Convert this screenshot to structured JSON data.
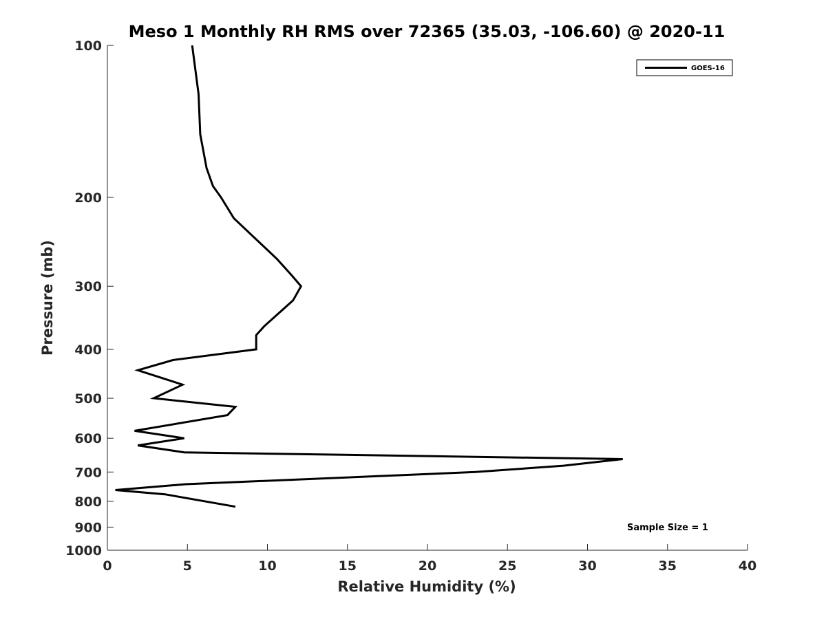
{
  "chart_data": {
    "type": "line",
    "title": "Meso 1 Monthly RH RMS over 72365 (35.03, -106.60) @ 2020-11",
    "xlabel": "Relative Humidity (%)",
    "ylabel": "Pressure (mb)",
    "xlim": [
      0,
      40
    ],
    "ylim": [
      100,
      1000
    ],
    "y_scale": "log",
    "y_reversed": true,
    "grid": false,
    "legend_position": "top-right",
    "x_ticks": [
      "0",
      "5",
      "10",
      "15",
      "20",
      "25",
      "30",
      "35",
      "40"
    ],
    "y_ticks": [
      "100",
      "200",
      "300",
      "400",
      "500",
      "600",
      "700",
      "800",
      "900",
      "1000"
    ],
    "annotation": "Sample Size = 1",
    "series": [
      {
        "name": "GOES-16",
        "color": "#000000",
        "points": [
          {
            "rh": 5.3,
            "p": 100
          },
          {
            "rh": 5.7,
            "p": 125
          },
          {
            "rh": 5.8,
            "p": 150
          },
          {
            "rh": 6.2,
            "p": 175
          },
          {
            "rh": 6.6,
            "p": 190
          },
          {
            "rh": 7.1,
            "p": 200
          },
          {
            "rh": 7.9,
            "p": 220
          },
          {
            "rh": 10.6,
            "p": 265
          },
          {
            "rh": 11.5,
            "p": 285
          },
          {
            "rh": 12.1,
            "p": 300
          },
          {
            "rh": 11.6,
            "p": 320
          },
          {
            "rh": 9.8,
            "p": 360
          },
          {
            "rh": 9.3,
            "p": 375
          },
          {
            "rh": 9.3,
            "p": 400
          },
          {
            "rh": 4.1,
            "p": 420
          },
          {
            "rh": 1.9,
            "p": 440
          },
          {
            "rh": 4.7,
            "p": 470
          },
          {
            "rh": 2.9,
            "p": 500
          },
          {
            "rh": 8.0,
            "p": 520
          },
          {
            "rh": 7.5,
            "p": 540
          },
          {
            "rh": 1.7,
            "p": 580
          },
          {
            "rh": 4.8,
            "p": 600
          },
          {
            "rh": 1.9,
            "p": 620
          },
          {
            "rh": 4.8,
            "p": 640
          },
          {
            "rh": 32.2,
            "p": 660
          },
          {
            "rh": 28.5,
            "p": 680
          },
          {
            "rh": 23.0,
            "p": 700
          },
          {
            "rh": 4.9,
            "p": 740
          },
          {
            "rh": 0.5,
            "p": 760
          },
          {
            "rh": 3.6,
            "p": 775
          },
          {
            "rh": 8.0,
            "p": 820
          }
        ]
      }
    ]
  }
}
